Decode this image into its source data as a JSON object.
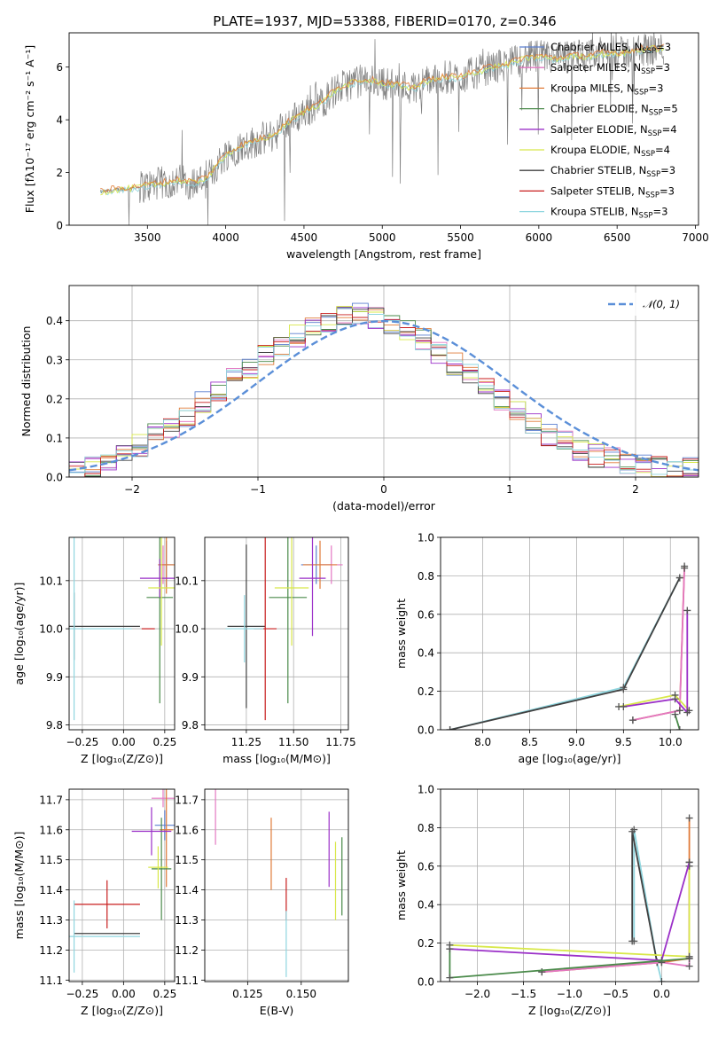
{
  "figure_title": "PLATE=1937, MJD=53388, FIBERID=0170, z=0.346",
  "colors": {
    "Chabrier MILES": "#5b7fcf",
    "Salpeter MILES": "#e377c2",
    "Kroupa MILES": "#e07b39",
    "Chabrier ELODIE": "#4a8a4a",
    "Salpeter ELODIE": "#9b30c8",
    "Kroupa ELODIE": "#d8e84a",
    "Chabrier STELIB": "#404040",
    "Salpeter STELIB": "#c81e1e",
    "Kroupa STELIB": "#8fd6df",
    "data": "#808080",
    "normal": "#5b8fd8"
  },
  "chart_data": [
    {
      "type": "line",
      "xlabel": "wavelength [Angstrom, rest frame]",
      "ylabel": "Flux [fλ10⁻¹⁷ erg cm⁻² s⁻¹ A⁻¹]",
      "xlim": [
        3000,
        7020
      ],
      "ylim": [
        0,
        7.3
      ],
      "xticks": [
        "3500",
        "4000",
        "4500",
        "5000",
        "5500",
        "6000",
        "6500",
        "7000"
      ],
      "yticks": [
        "0",
        "2",
        "4",
        "6"
      ],
      "legend_position": "top-right",
      "legend": [
        {
          "name": "Chabrier MILES",
          "nssp": "3"
        },
        {
          "name": "Salpeter MILES",
          "nssp": "3"
        },
        {
          "name": "Kroupa MILES",
          "nssp": "3"
        },
        {
          "name": "Chabrier ELODIE",
          "nssp": "5"
        },
        {
          "name": "Salpeter ELODIE",
          "nssp": "4"
        },
        {
          "name": "Kroupa ELODIE",
          "nssp": "4"
        },
        {
          "name": "Chabrier STELIB",
          "nssp": "3"
        },
        {
          "name": "Salpeter STELIB",
          "nssp": "3"
        },
        {
          "name": "Kroupa STELIB",
          "nssp": "3"
        }
      ],
      "continuum": {
        "x": [
          3200,
          3300,
          3400,
          3500,
          3600,
          3700,
          3800,
          3900,
          4000,
          4100,
          4200,
          4300,
          4400,
          4500,
          4600,
          4700,
          4800,
          4900,
          5000,
          5100,
          5200,
          5300,
          5400,
          5500,
          5600,
          5700,
          5800,
          5900,
          6000,
          6100,
          6200,
          6300,
          6400,
          6500,
          6600,
          6700,
          6800
        ],
        "y": [
          1.25,
          1.35,
          1.4,
          1.5,
          1.6,
          1.7,
          1.6,
          1.9,
          2.7,
          3.0,
          3.2,
          3.4,
          3.9,
          4.3,
          4.6,
          5.1,
          5.4,
          5.5,
          5.4,
          5.3,
          5.2,
          5.5,
          5.6,
          5.6,
          5.8,
          6.0,
          6.1,
          6.3,
          6.4,
          6.3,
          6.4,
          6.4,
          6.5,
          6.5,
          6.6,
          6.7,
          6.7
        ]
      }
    },
    {
      "type": "line",
      "xlabel": "(data-model)/error",
      "ylabel": "Normed distribution",
      "xlim": [
        -2.5,
        2.5
      ],
      "ylim": [
        0,
        0.49
      ],
      "xticks": [
        "-2",
        "-1",
        "0",
        "1",
        "2"
      ],
      "yticks": [
        "0.0",
        "0.1",
        "0.2",
        "0.3",
        "0.4"
      ],
      "legend_position": "top-right",
      "legend_label": "𝒩(0, 1)",
      "bin_width": 0.125,
      "histogram": [
        0.025,
        0.03,
        0.04,
        0.06,
        0.08,
        0.11,
        0.13,
        0.155,
        0.19,
        0.22,
        0.25,
        0.28,
        0.31,
        0.33,
        0.36,
        0.38,
        0.4,
        0.41,
        0.42,
        0.41,
        0.39,
        0.37,
        0.35,
        0.32,
        0.29,
        0.26,
        0.23,
        0.2,
        0.17,
        0.14,
        0.11,
        0.09,
        0.07,
        0.055,
        0.045,
        0.035,
        0.03,
        0.025,
        0.02,
        0.02
      ]
    },
    {
      "type": "scatter",
      "xlabel": "Z [log₁₀(Z/Z⊙)]",
      "ylabel": "age  [log₁₀(age/yr)]",
      "xlim": [
        -0.33,
        0.31
      ],
      "ylim": [
        9.79,
        10.19
      ],
      "xticks": [
        "-0.25",
        "0.00",
        "0.25"
      ],
      "yticks": [
        "9.8",
        "9.9",
        "10.0",
        "10.1"
      ],
      "error_bars": [
        {
          "series": "Chabrier MILES",
          "x": 0.26,
          "y": 10.133,
          "xerr": 0.04,
          "yerr": 0.05
        },
        {
          "series": "Salpeter MILES",
          "x": 0.24,
          "y": 10.133,
          "xerr": 0.03,
          "yerr": 0.04
        },
        {
          "series": "Kroupa MILES",
          "x": 0.26,
          "y": 10.133,
          "xerr": 0.05,
          "yerr": 0.06
        },
        {
          "series": "Chabrier ELODIE",
          "x": 0.22,
          "y": 10.065,
          "xerr": 0.08,
          "yerr": 0.22
        },
        {
          "series": "Salpeter ELODIE",
          "x": 0.22,
          "y": 10.105,
          "xerr": 0.12,
          "yerr": 0.04
        },
        {
          "series": "Kroupa ELODIE",
          "x": 0.23,
          "y": 10.085,
          "xerr": 0.08,
          "yerr": 0.12
        },
        {
          "series": "Chabrier STELIB",
          "x": -0.3,
          "y": 10.005,
          "xerr": 0.4,
          "yerr": 0.07
        },
        {
          "series": "Salpeter STELIB",
          "x": 0.15,
          "y": 10.0,
          "xerr": 0.04,
          "yerr": 0.0
        },
        {
          "series": "Kroupa STELIB",
          "x": -0.3,
          "y": 10.0,
          "xerr": 0.35,
          "yerr": 0.19
        }
      ]
    },
    {
      "type": "scatter",
      "xlabel": "mass [log₁₀(M/M⊙)]",
      "ylabel": "",
      "xlim": [
        11.03,
        11.79
      ],
      "ylim": [
        9.79,
        10.19
      ],
      "xticks": [
        "11.25",
        "11.50",
        "11.75"
      ],
      "yticks": [
        "9.8",
        "9.9",
        "10.0",
        "10.1"
      ],
      "error_bars": [
        {
          "series": "Chabrier MILES",
          "x": 11.62,
          "y": 10.133,
          "xerr": 0.08,
          "yerr": 0.04
        },
        {
          "series": "Salpeter MILES",
          "x": 11.7,
          "y": 10.133,
          "xerr": 0.06,
          "yerr": 0.04
        },
        {
          "series": "Kroupa MILES",
          "x": 11.64,
          "y": 10.133,
          "xerr": 0.09,
          "yerr": 0.05
        },
        {
          "series": "Chabrier ELODIE",
          "x": 11.47,
          "y": 10.065,
          "xerr": 0.1,
          "yerr": 0.22
        },
        {
          "series": "Salpeter ELODIE",
          "x": 11.6,
          "y": 10.105,
          "xerr": 0.07,
          "yerr": 0.12
        },
        {
          "series": "Kroupa ELODIE",
          "x": 11.49,
          "y": 10.085,
          "xerr": 0.09,
          "yerr": 0.12
        },
        {
          "series": "Chabrier STELIB",
          "x": 11.25,
          "y": 10.005,
          "xerr": 0.1,
          "yerr": 0.17
        },
        {
          "series": "Salpeter STELIB",
          "x": 11.35,
          "y": 10.0,
          "xerr": 0.06,
          "yerr": 0.19
        },
        {
          "series": "Kroupa STELIB",
          "x": 11.24,
          "y": 10.0,
          "xerr": 0.1,
          "yerr": 0.07
        }
      ]
    },
    {
      "type": "line",
      "xlabel": "age  [log₁₀(age/yr)]",
      "ylabel": "mass weight",
      "xlim": [
        7.55,
        10.3
      ],
      "ylim": [
        0,
        1.0
      ],
      "xticks": [
        "8.0",
        "8.5",
        "9.0",
        "9.5",
        "10.0"
      ],
      "yticks": [
        "0.0",
        "0.2",
        "0.4",
        "0.6",
        "0.8",
        "1.0"
      ],
      "series": [
        {
          "name": "Kroupa STELIB",
          "x": [
            7.65,
            9.5,
            10.1
          ],
          "y": [
            0.0,
            0.22,
            0.79
          ]
        },
        {
          "name": "Chabrier STELIB",
          "x": [
            7.65,
            9.5,
            10.1
          ],
          "y": [
            0.0,
            0.21,
            0.79
          ]
        },
        {
          "name": "Kroupa MILES",
          "x": [
            9.6,
            10.1,
            10.15
          ],
          "y": [
            0.05,
            0.1,
            0.85
          ]
        },
        {
          "name": "Salpeter MILES",
          "x": [
            9.6,
            10.1,
            10.15
          ],
          "y": [
            0.05,
            0.1,
            0.84
          ]
        },
        {
          "name": "Kroupa ELODIE",
          "x": [
            9.45,
            10.05,
            10.2
          ],
          "y": [
            0.12,
            0.18,
            0.1
          ]
        },
        {
          "name": "Salpeter ELODIE",
          "x": [
            9.5,
            10.05,
            10.18,
            10.18
          ],
          "y": [
            0.12,
            0.16,
            0.09,
            0.62
          ]
        },
        {
          "name": "Chabrier ELODIE",
          "x": [
            10.05,
            10.1
          ],
          "y": [
            0.08,
            0.0
          ]
        }
      ]
    },
    {
      "type": "scatter",
      "xlabel": "Z [log₁₀(Z/Z⊙)]",
      "ylabel": "mass [log₁₀(M/M⊙)]",
      "xlim": [
        -0.33,
        0.31
      ],
      "ylim": [
        11.095,
        11.735
      ],
      "xticks": [
        "-0.25",
        "0.00",
        "0.25"
      ],
      "yticks": [
        "11.1",
        "11.2",
        "11.3",
        "11.4",
        "11.5",
        "11.6",
        "11.7"
      ],
      "error_bars": [
        {
          "series": "Chabrier MILES",
          "x": 0.25,
          "y": 11.615,
          "xerr": 0.06,
          "yerr": 0.05
        },
        {
          "series": "Salpeter MILES",
          "x": 0.24,
          "y": 11.705,
          "xerr": 0.07,
          "yerr": 0.03
        },
        {
          "series": "Kroupa MILES",
          "x": 0.26,
          "y": 11.6,
          "xerr": 0.04,
          "yerr": 0.19
        },
        {
          "series": "Chabrier ELODIE",
          "x": 0.23,
          "y": 11.47,
          "xerr": 0.06,
          "yerr": 0.17
        },
        {
          "series": "Salpeter ELODIE",
          "x": 0.17,
          "y": 11.595,
          "xerr": 0.12,
          "yerr": 0.08
        },
        {
          "series": "Kroupa ELODIE",
          "x": 0.21,
          "y": 11.475,
          "xerr": 0.06,
          "yerr": 0.07
        },
        {
          "series": "Chabrier STELIB",
          "x": -0.1,
          "y": 11.255,
          "xerr": 0.2,
          "yerr": 0.0
        },
        {
          "series": "Salpeter STELIB",
          "x": -0.1,
          "y": 11.352,
          "xerr": 0.2,
          "yerr": 0.08
        },
        {
          "series": "Kroupa STELIB",
          "x": -0.3,
          "y": 11.245,
          "xerr": 0.4,
          "yerr": 0.12
        }
      ]
    },
    {
      "type": "scatter",
      "xlabel": "E(B-V)",
      "ylabel": "",
      "xlim": [
        0.105,
        0.172
      ],
      "ylim": [
        11.095,
        11.735
      ],
      "xticks": [
        "0.125",
        "0.150"
      ],
      "yticks": [
        "11.1",
        "11.2",
        "11.3",
        "11.4",
        "11.5",
        "11.6",
        "11.7"
      ],
      "error_bars": [
        {
          "series": "Salpeter MILES",
          "x": 0.11,
          "y": 11.65,
          "xerr": 0.0,
          "yerr": 0.1
        },
        {
          "series": "Kroupa MILES",
          "x": 0.136,
          "y": 11.52,
          "xerr": 0.0,
          "yerr": 0.12
        },
        {
          "series": "Salpeter STELIB",
          "x": 0.143,
          "y": 11.37,
          "xerr": 0.0,
          "yerr": 0.07
        },
        {
          "series": "Kroupa STELIB",
          "x": 0.143,
          "y": 11.22,
          "xerr": 0.0,
          "yerr": 0.11
        },
        {
          "series": "Salpeter ELODIE",
          "x": 0.163,
          "y": 11.535,
          "xerr": 0.0,
          "yerr": 0.125
        },
        {
          "series": "Kroupa ELODIE",
          "x": 0.166,
          "y": 11.43,
          "xerr": 0.0,
          "yerr": 0.13
        },
        {
          "series": "Chabrier ELODIE",
          "x": 0.169,
          "y": 11.445,
          "xerr": 0.0,
          "yerr": 0.13
        }
      ]
    },
    {
      "type": "line",
      "xlabel": "Z [log₁₀(Z/Z⊙)]",
      "ylabel": "mass weight",
      "xlim": [
        -2.4,
        0.4
      ],
      "ylim": [
        0,
        1.0
      ],
      "xticks": [
        "-2.0",
        "-1.5",
        "-1.0",
        "-0.5",
        "0.0"
      ],
      "yticks": [
        "0.0",
        "0.2",
        "0.4",
        "0.6",
        "0.8",
        "1.0"
      ],
      "series": [
        {
          "name": "Kroupa STELIB",
          "x": [
            -0.3,
            -0.3,
            -0.05,
            0.0
          ],
          "y": [
            0.21,
            0.79,
            0.1,
            0.0
          ]
        },
        {
          "name": "Chabrier STELIB",
          "x": [
            -0.32,
            -0.32,
            -0.05
          ],
          "y": [
            0.21,
            0.78,
            0.1
          ]
        },
        {
          "name": "Kroupa MILES",
          "x": [
            -1.3,
            0.0,
            0.3,
            0.3
          ],
          "y": [
            0.05,
            0.1,
            0.12,
            0.85
          ]
        },
        {
          "name": "Salpeter MILES",
          "x": [
            -1.3,
            0.0,
            0.3,
            0.3
          ],
          "y": [
            0.05,
            0.1,
            0.08,
            0.62
          ]
        },
        {
          "name": "Kroupa ELODIE",
          "x": [
            -2.3,
            0.3,
            0.3
          ],
          "y": [
            0.19,
            0.13,
            0.6
          ]
        },
        {
          "name": "Salpeter ELODIE",
          "x": [
            -2.3,
            0.0,
            0.3
          ],
          "y": [
            0.17,
            0.11,
            0.62
          ]
        },
        {
          "name": "Chabrier ELODIE",
          "x": [
            -2.3,
            -2.3,
            0.3
          ],
          "y": [
            0.17,
            0.02,
            0.12
          ]
        }
      ]
    }
  ]
}
